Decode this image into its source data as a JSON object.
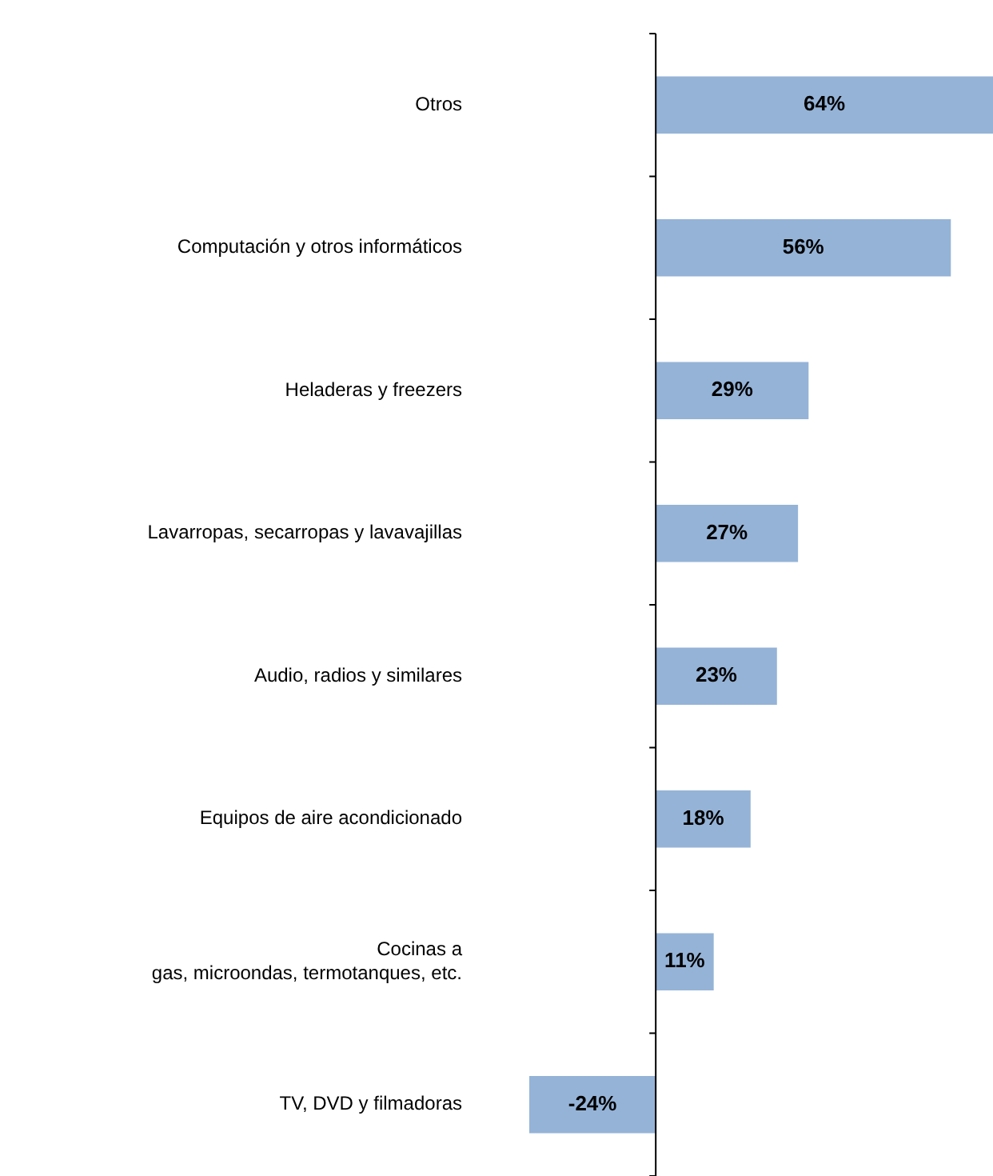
{
  "chart_data": {
    "type": "bar",
    "orientation": "horizontal",
    "categories": [
      "Otros",
      "Computación y otros informáticos",
      "Heladeras y freezers",
      "Lavarropas, secarropas y lavavajillas",
      "Audio, radios y similares",
      "Equipos de aire acondicionado",
      "Cocinas a\ngas, microondas, termotanques, etc.",
      "TV, DVD y filmadoras"
    ],
    "values": [
      64,
      56,
      29,
      27,
      23,
      18,
      11,
      -24
    ],
    "value_labels": [
      "64%",
      "56%",
      "29%",
      "27%",
      "23%",
      "18%",
      "11%",
      "-24%"
    ],
    "color": "#95b3d7",
    "legend": false,
    "tick_labels": "y"
  }
}
